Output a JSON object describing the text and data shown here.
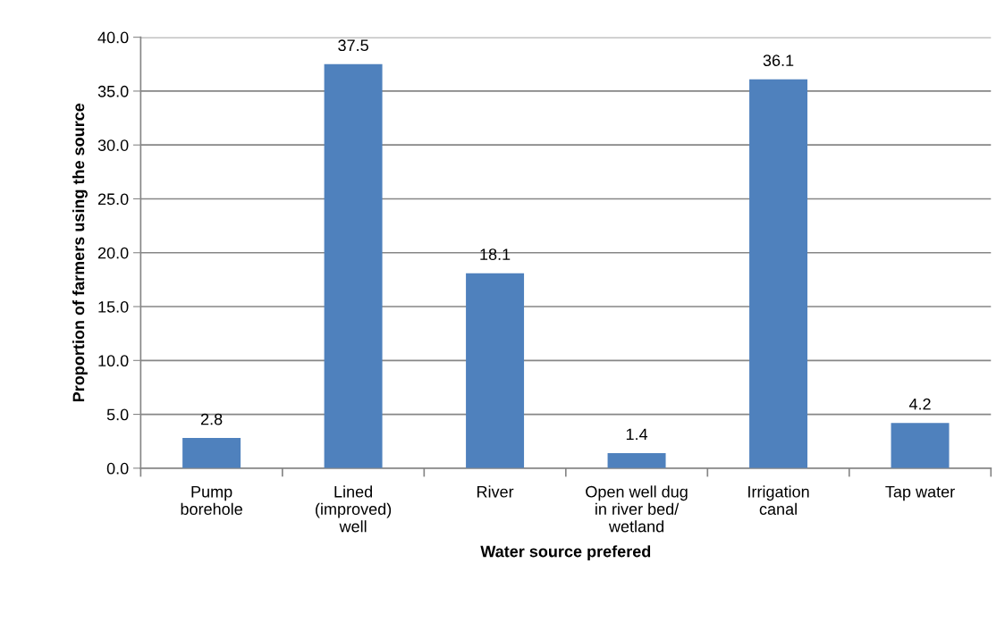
{
  "chart_data": {
    "type": "bar",
    "xlabel": "Water source prefered",
    "ylabel": "Proportion of farmers using the source",
    "categories": [
      "Pump\nborehole",
      "Lined\n(improved)\nwell",
      "River",
      "Open well dug\nin river bed/\nwetland",
      "Irrigation\ncanal",
      "Tap water"
    ],
    "values": [
      2.8,
      37.5,
      18.1,
      1.4,
      36.1,
      4.2
    ],
    "color": "#4f81bd",
    "ylim": [
      0,
      40
    ],
    "yticks": [
      {
        "value": 0,
        "label": "0.0"
      },
      {
        "value": 5,
        "label": "5.0"
      },
      {
        "value": 10,
        "label": "10.0"
      },
      {
        "value": 15,
        "label": "15.0"
      },
      {
        "value": 20,
        "label": "20.0"
      },
      {
        "value": 25,
        "label": "25.0"
      },
      {
        "value": 30,
        "label": "30.0"
      },
      {
        "value": 35,
        "label": "35.0"
      },
      {
        "value": 40,
        "label": "40.0"
      }
    ],
    "grid": "y",
    "data_labels": true,
    "legend": false
  }
}
